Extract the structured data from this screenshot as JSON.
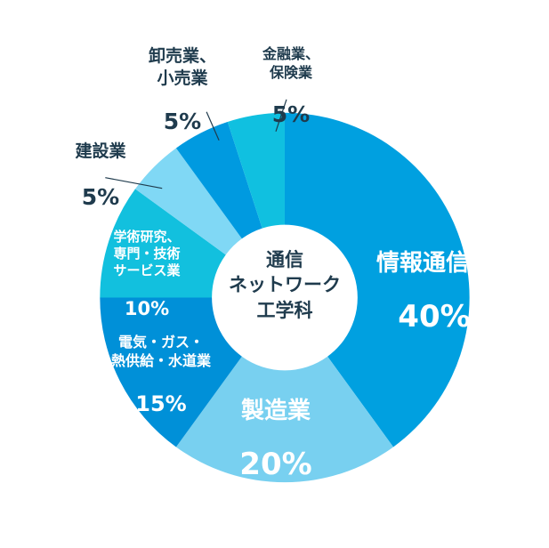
{
  "chart_data": {
    "type": "pie",
    "donut": true,
    "center_label": "通信\nネットワーク\n工学科",
    "slices": [
      {
        "label": "情報通信業",
        "value": 40,
        "value_label": "40%",
        "color": "#00a0e0"
      },
      {
        "label": "製造業",
        "value": 20,
        "value_label": "20%",
        "color": "#78d0f0"
      },
      {
        "label": "電気・ガス・\n熱供給・水道業",
        "value": 15,
        "value_label": "15%",
        "color": "#0090d8"
      },
      {
        "label": "学術研究、\n専門・技術\nサービス業",
        "value": 10,
        "value_label": "10%",
        "color": "#12c0de"
      },
      {
        "label": "建設業",
        "value": 5,
        "value_label": "5%",
        "color": "#80d8f5"
      },
      {
        "label": "卸売業、\n小売業",
        "value": 5,
        "value_label": "5%",
        "color": "#009ae0"
      },
      {
        "label": "金融業、\n保険業",
        "value": 5,
        "value_label": "5%",
        "color": "#10c0e0"
      }
    ]
  }
}
